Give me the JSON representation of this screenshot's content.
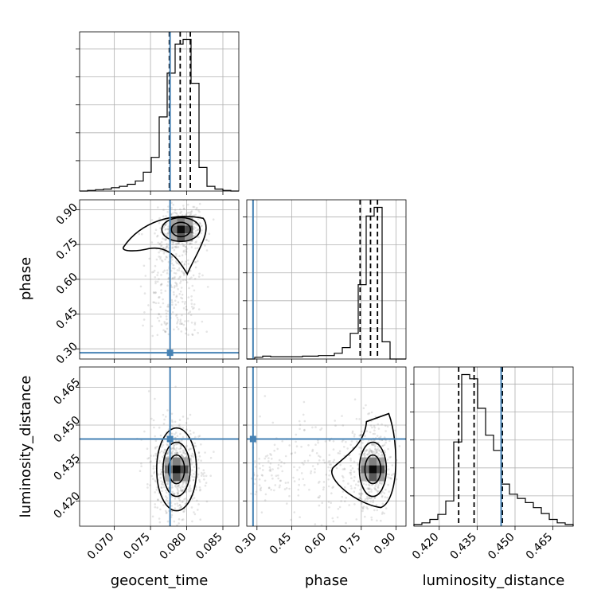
{
  "chart_data": {
    "type": "corner",
    "parameters": [
      "geocent_time",
      "phase",
      "luminosity_distance"
    ],
    "xlabels": [
      "geocent_time",
      "phase",
      "luminosity_distance"
    ],
    "ylabels": [
      "",
      "phase",
      "luminosity_distance"
    ],
    "ranges": [
      [
        0.0652,
        0.0872
      ],
      [
        0.256,
        0.943
      ],
      [
        0.41,
        0.473
      ]
    ],
    "ticks": [
      [
        "0.070",
        "0.075",
        "0.080",
        "0.085"
      ],
      [
        "0.30",
        "0.45",
        "0.60",
        "0.75",
        "0.90"
      ],
      [
        "0.420",
        "0.435",
        "0.450",
        "0.465"
      ]
    ],
    "truths": [
      0.0777,
      0.283,
      0.4445
    ],
    "quantiles": [
      [
        0.0776,
        0.0791,
        0.0805
      ],
      [
        0.745,
        0.79,
        0.82
      ],
      [
        0.4277,
        0.4338,
        0.445
      ]
    ],
    "histograms": [
      {
        "bin_edges": [
          0.0652,
          0.0663,
          0.0674,
          0.0685,
          0.0696,
          0.0707,
          0.0718,
          0.0729,
          0.074,
          0.0751,
          0.0762,
          0.0773,
          0.0784,
          0.0795,
          0.0806,
          0.0817,
          0.0828,
          0.0839,
          0.085,
          0.0861,
          0.0872
        ],
        "counts": [
          0,
          1,
          2,
          3,
          5,
          7,
          10,
          15,
          28,
          50,
          110,
          175,
          218,
          225,
          160,
          35,
          7,
          3,
          1,
          0
        ]
      },
      {
        "bin_edges": [
          0.256,
          0.2903,
          0.3247,
          0.359,
          0.3934,
          0.4277,
          0.4621,
          0.4964,
          0.5308,
          0.5651,
          0.5995,
          0.6338,
          0.6682,
          0.7025,
          0.7369,
          0.7712,
          0.8056,
          0.8399,
          0.8743,
          0.9086,
          0.943
        ],
        "counts": [
          0,
          3,
          5,
          4,
          4,
          4,
          4,
          5,
          5,
          6,
          6,
          10,
          20,
          45,
          130,
          250,
          265,
          30,
          0,
          0
        ]
      },
      {
        "bin_edges": [
          0.41,
          0.41315,
          0.4163,
          0.41945,
          0.4226,
          0.42575,
          0.4289,
          0.43205,
          0.4352,
          0.43835,
          0.4415,
          0.44465,
          0.4478,
          0.45095,
          0.4541,
          0.45725,
          0.4604,
          0.46355,
          0.4667,
          0.46985,
          0.473
        ],
        "counts": [
          2,
          4,
          8,
          14,
          30,
          100,
          180,
          175,
          140,
          108,
          90,
          50,
          38,
          33,
          28,
          22,
          15,
          8,
          4,
          2
        ]
      }
    ],
    "density_peaks": [
      {
        "x": "geocent_time",
        "y": "phase",
        "x_value": 0.0792,
        "y_value": 0.815
      },
      {
        "x": "geocent_time",
        "y": "luminosity_distance",
        "x_value": 0.0786,
        "y_value": 0.4325
      },
      {
        "x": "phase",
        "y": "luminosity_distance",
        "x_value": 0.8,
        "y_value": 0.4325
      }
    ]
  }
}
